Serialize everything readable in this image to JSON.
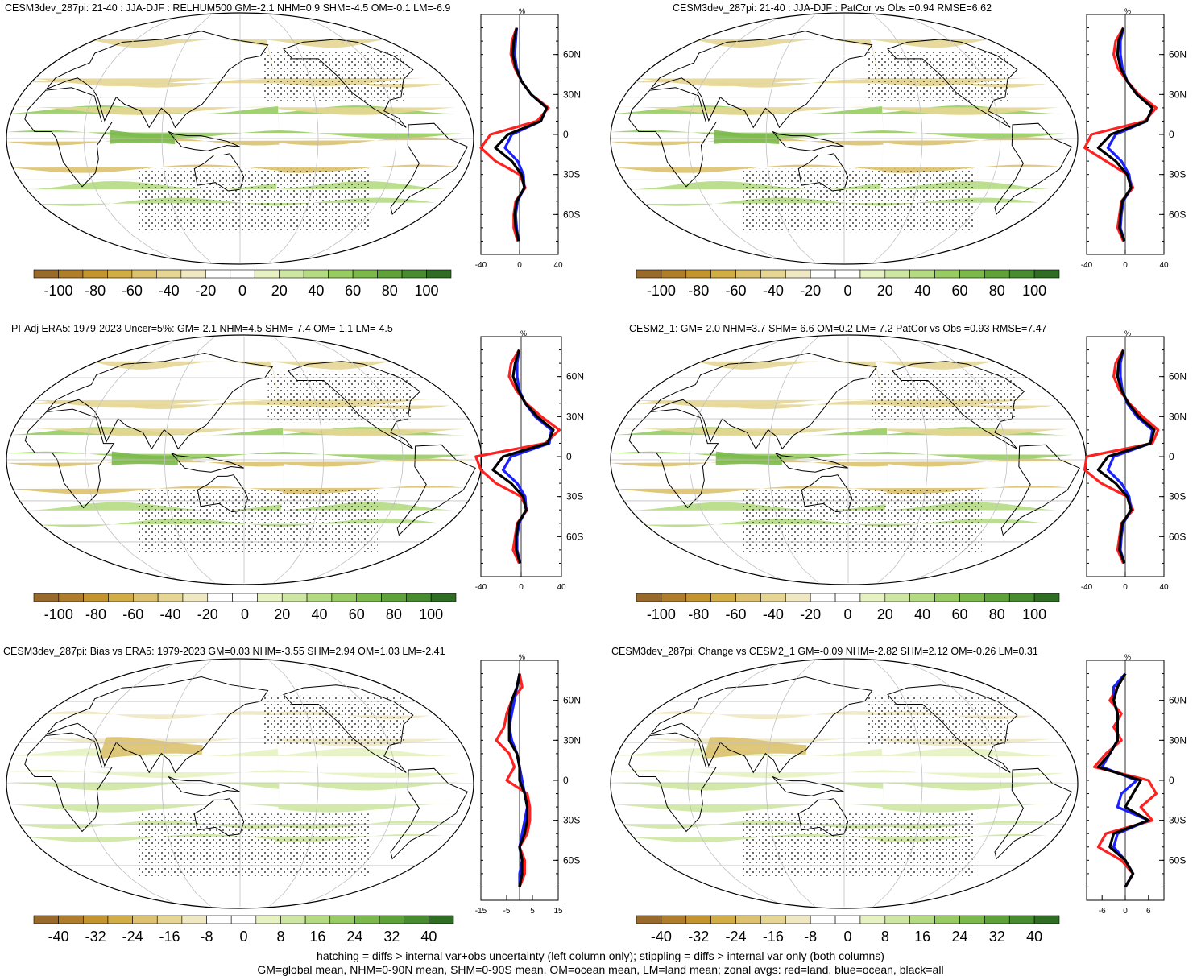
{
  "colors": {
    "palette": [
      "#9a6a2c",
      "#b07d2a",
      "#c4952e",
      "#d2ad45",
      "#dcc16e",
      "#e6d694",
      "#f0e8c2",
      "#ffffff",
      "#ffffff",
      "#e6f2c1",
      "#cde7a2",
      "#b4db82",
      "#98cc63",
      "#7bb94a",
      "#5fa23a",
      "#478c2f",
      "#2f6e22"
    ],
    "land_gray": "#c8c8c8",
    "red": "#ff2020",
    "blue": "#1a20ff",
    "black": "#000000",
    "grid": "#c0c0c0"
  },
  "colorbars": {
    "top": [
      "-100",
      "-80",
      "-60",
      "-40",
      "-20",
      "0",
      "20",
      "40",
      "60",
      "80",
      "100"
    ],
    "bottom": [
      "-40",
      "-32",
      "-24",
      "-16",
      "-8",
      "0",
      "8",
      "16",
      "24",
      "32",
      "40"
    ]
  },
  "lat_labels": [
    "60N",
    "30N",
    "0",
    "30S",
    "60S"
  ],
  "zonal_axis_unit": "%",
  "panels": [
    {
      "title": "CESM3dev_287pi: 21-40 : JJA-DJF : RELHUM500 GM=-2.1 NHM=0.9 SHM=-4.5 OM=-0.1 LM=-6.9",
      "xticks": [
        "-40",
        "0",
        "40"
      ],
      "xlim": [
        -40,
        40
      ],
      "colorbar": "top"
    },
    {
      "title": "CESM3dev_287pi: 21-40 : JJA-DJF : PatCor vs Obs =0.94 RMSE=6.62",
      "xticks": [
        "-40",
        "0",
        "40"
      ],
      "xlim": [
        -40,
        40
      ],
      "colorbar": "top"
    },
    {
      "title": "PI-Adj ERA5: 1979-2023 Uncer=5%: GM=-2.1 NHM=4.5 SHM=-7.4 OM=-1.1 LM=-4.5",
      "xticks": [
        "-40",
        "0",
        "40"
      ],
      "xlim": [
        -40,
        40
      ],
      "colorbar": "top"
    },
    {
      "title": "CESM2_1: GM=-2.0 NHM=3.7 SHM=-6.6 OM=0.2 LM=-7.2 PatCor vs Obs =0.93 RMSE=7.47",
      "xticks": [
        "-40",
        "0",
        "40"
      ],
      "xlim": [
        -40,
        40
      ],
      "colorbar": "top"
    },
    {
      "title": "CESM3dev_287pi: Bias vs ERA5: 1979-2023 GM=0.03 NHM=-3.55 SHM=2.94 OM=1.03 LM=-2.41",
      "xticks": [
        "-15",
        "-5",
        "5",
        "15"
      ],
      "xlim": [
        -15,
        15
      ],
      "colorbar": "bottom"
    },
    {
      "title": "CESM3dev_287pi: Change vs CESM2_1 GM=-0.09 NHM=-2.82 SHM=2.12 OM=-0.26 LM=0.31",
      "xticks": [
        "-6",
        "0",
        "6"
      ],
      "xlim": [
        -10,
        10
      ],
      "colorbar": "bottom"
    }
  ],
  "chart_data": [
    {
      "type": "line",
      "title": "CESM3dev_287pi: 21-40 : JJA-DJF : RELHUM500 GM=-2.1 NHM=0.9 SHM=-4.5 OM=-0.1 LM=-6.9",
      "y": [
        80,
        70,
        60,
        50,
        40,
        30,
        20,
        10,
        0,
        -10,
        -20,
        -30,
        -40,
        -50,
        -60,
        -70,
        -80
      ],
      "series": [
        {
          "color": "red",
          "values": [
            -3,
            -8,
            -9,
            -5,
            2,
            12,
            30,
            18,
            -30,
            -40,
            -25,
            0,
            6,
            -4,
            -6,
            -6,
            -2
          ]
        },
        {
          "color": "blue",
          "values": [
            -3,
            -4,
            -5,
            -3,
            2,
            12,
            28,
            22,
            -8,
            -15,
            -2,
            4,
            5,
            -2,
            -4,
            -3,
            -1
          ]
        },
        {
          "color": "black",
          "values": [
            -3,
            -6,
            -7,
            -4,
            2,
            12,
            28,
            22,
            -12,
            -25,
            -8,
            2,
            5,
            -3,
            -5,
            -4,
            -1
          ]
        }
      ]
    },
    {
      "type": "line",
      "title": "CESM3dev_287pi: 21-40 : JJA-DJF : PatCor vs Obs =0.94 RMSE=6.62",
      "y": [
        80,
        70,
        60,
        50,
        40,
        30,
        20,
        10,
        0,
        -10,
        -20,
        -30,
        -40,
        -50,
        -60,
        -70,
        -80
      ],
      "series": [
        {
          "color": "red",
          "values": [
            -2,
            -10,
            -12,
            -8,
            2,
            14,
            32,
            20,
            -35,
            -42,
            -20,
            2,
            8,
            -4,
            -6,
            -8,
            -2
          ]
        },
        {
          "color": "blue",
          "values": [
            -2,
            -5,
            -5,
            -3,
            2,
            12,
            28,
            22,
            -10,
            -18,
            -4,
            4,
            6,
            -2,
            -4,
            -5,
            -1
          ]
        },
        {
          "color": "black",
          "values": [
            -2,
            -7,
            -8,
            -5,
            2,
            12,
            28,
            22,
            -15,
            -28,
            -10,
            2,
            6,
            -3,
            -5,
            -6,
            -1
          ]
        }
      ]
    },
    {
      "type": "line",
      "title": "PI-Adj ERA5: 1979-2023 Uncer=5%: GM=-2.1 NHM=4.5 SHM=-7.4 OM=-1.1 LM=-4.5",
      "y": [
        80,
        70,
        60,
        50,
        40,
        30,
        20,
        10,
        0,
        -10,
        -20,
        -30,
        -40,
        -50,
        -60,
        -70,
        -80
      ],
      "series": [
        {
          "color": "red",
          "values": [
            -2,
            -10,
            -12,
            -5,
            5,
            20,
            38,
            24,
            -45,
            -40,
            -25,
            0,
            6,
            -4,
            -6,
            -8,
            -2
          ]
        },
        {
          "color": "blue",
          "values": [
            -2,
            -4,
            -4,
            -2,
            4,
            14,
            30,
            28,
            -10,
            -18,
            -4,
            4,
            5,
            -2,
            -4,
            -4,
            -1
          ]
        },
        {
          "color": "black",
          "values": [
            -2,
            -6,
            -8,
            -3,
            4,
            16,
            32,
            26,
            -18,
            -28,
            -10,
            2,
            5,
            -3,
            -5,
            -5,
            -1
          ]
        }
      ]
    },
    {
      "type": "line",
      "title": "CESM2_1: GM=-2.0 NHM=3.7 SHM=-6.6 OM=0.2 LM=-7.2 PatCor vs Obs =0.93 RMSE=7.47",
      "y": [
        80,
        70,
        60,
        50,
        40,
        30,
        20,
        10,
        0,
        -10,
        -20,
        -30,
        -40,
        -50,
        -60,
        -70,
        -80
      ],
      "series": [
        {
          "color": "red",
          "values": [
            -2,
            -10,
            -12,
            -6,
            4,
            18,
            34,
            28,
            -40,
            -42,
            -25,
            2,
            8,
            -4,
            -6,
            -8,
            -2
          ]
        },
        {
          "color": "blue",
          "values": [
            -2,
            -5,
            -5,
            -3,
            2,
            12,
            28,
            26,
            -12,
            -18,
            -4,
            4,
            6,
            -2,
            -4,
            -5,
            -1
          ]
        },
        {
          "color": "black",
          "values": [
            -2,
            -7,
            -8,
            -4,
            3,
            14,
            30,
            26,
            -18,
            -28,
            -10,
            2,
            6,
            -3,
            -5,
            -6,
            -1
          ]
        }
      ]
    },
    {
      "type": "line",
      "title": "CESM3dev_287pi: Bias vs ERA5: 1979-2023 GM=0.03 NHM=-3.55 SHM=2.94 OM=1.03 LM=-2.41",
      "y": [
        80,
        70,
        60,
        50,
        40,
        30,
        20,
        10,
        0,
        -10,
        -20,
        -30,
        -40,
        -50,
        -60,
        -70,
        -80
      ],
      "series": [
        {
          "color": "red",
          "values": [
            0,
            1,
            -3,
            -5,
            -6,
            -9,
            -4,
            -2,
            -5,
            3,
            4,
            4,
            3,
            0,
            2,
            2,
            0
          ]
        },
        {
          "color": "blue",
          "values": [
            0,
            -1,
            -2,
            -3,
            -4,
            -3,
            -1,
            0,
            1,
            2,
            3,
            2,
            1,
            0,
            1,
            0,
            0
          ]
        },
        {
          "color": "black",
          "values": [
            0,
            -1,
            -3,
            -4,
            -4,
            -4,
            -1,
            0,
            0,
            2,
            3,
            3,
            2,
            0,
            1,
            1,
            0
          ]
        }
      ]
    },
    {
      "type": "line",
      "title": "CESM3dev_287pi: Change vs CESM2_1 GM=-0.09 NHM=-2.82 SHM=2.12 OM=-0.26 LM=0.31",
      "y": [
        80,
        70,
        60,
        50,
        40,
        30,
        20,
        10,
        0,
        -10,
        -20,
        -30,
        -40,
        -50,
        -60,
        -70,
        -80
      ],
      "series": [
        {
          "color": "red",
          "values": [
            0,
            -2,
            -4,
            -1,
            -3,
            -1,
            -5,
            -8,
            6,
            8,
            4,
            7,
            -5,
            -7,
            -1,
            2,
            0
          ]
        },
        {
          "color": "blue",
          "values": [
            0,
            -3,
            -3,
            -2,
            -2,
            -2,
            -4,
            -6,
            3,
            -1,
            -2,
            6,
            -2,
            -3,
            0,
            2,
            0
          ]
        },
        {
          "color": "black",
          "values": [
            0,
            -2,
            -3,
            -2,
            -2,
            -2,
            -4,
            -7,
            4,
            2,
            0,
            6,
            -3,
            -4,
            0,
            2,
            0
          ]
        }
      ]
    }
  ],
  "footer": {
    "line1": "hatching = diffs > internal var+obs uncertainty (left column only); stippling = diffs > internal var only (both columns)",
    "line2": "GM=global mean, NHM=0-90N mean, SHM=0-90S mean, OM=ocean mean, LM=land mean; zonal avgs: red=land, blue=ocean, black=all"
  }
}
